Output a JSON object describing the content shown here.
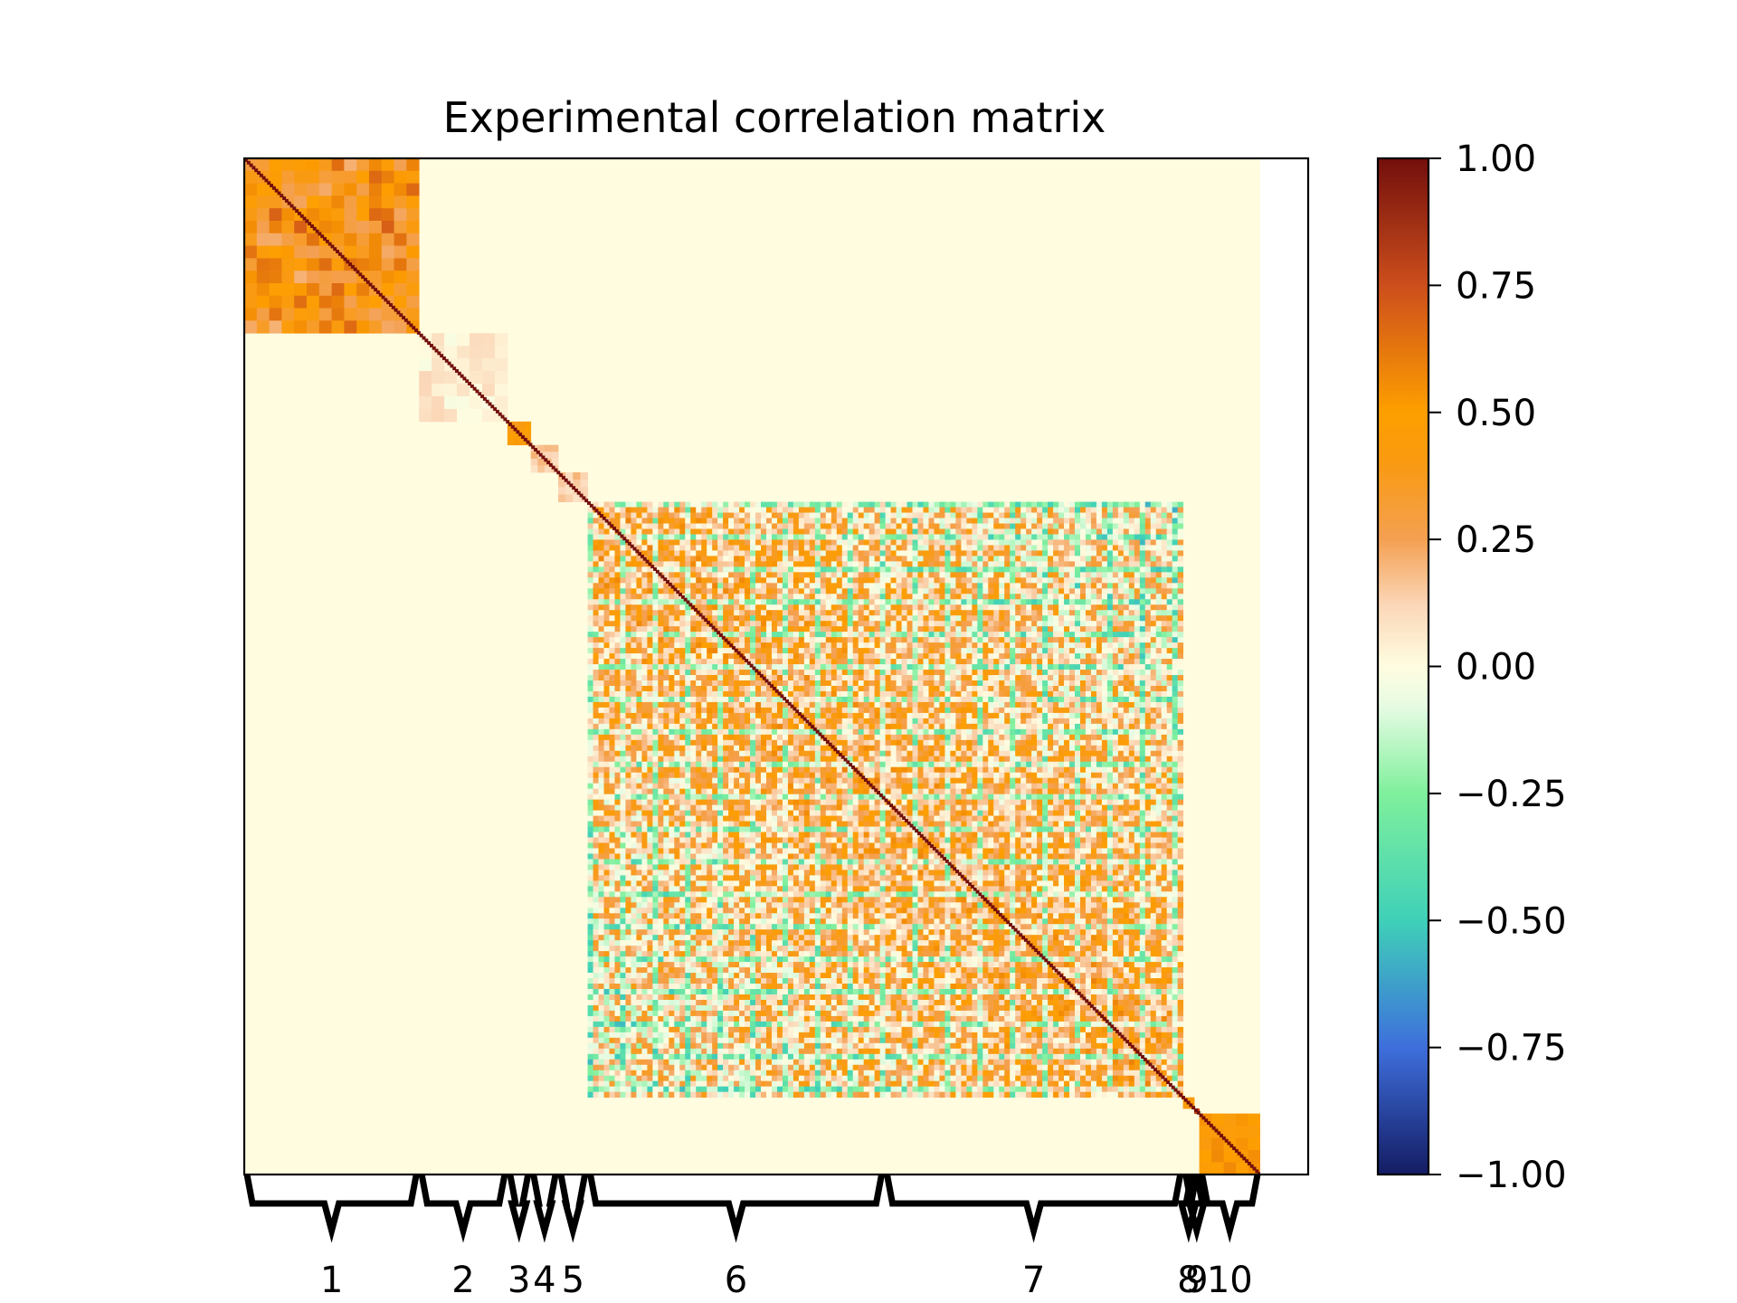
{
  "chart_data": {
    "type": "heatmap",
    "title": "Experimental correlation matrix",
    "colorbar": {
      "min": -1.0,
      "max": 1.0,
      "ticks": [
        "1.00",
        "0.75",
        "0.50",
        "0.25",
        "0.00",
        "−0.25",
        "−0.50",
        "−0.75",
        "−1.00"
      ],
      "tick_values": [
        1.0,
        0.75,
        0.5,
        0.25,
        0.0,
        -0.25,
        -0.5,
        -0.75,
        -1.0
      ],
      "colormap_stops": [
        {
          "value": -1.0,
          "color": "#141c63"
        },
        {
          "value": -0.75,
          "color": "#3e6fdc"
        },
        {
          "value": -0.5,
          "color": "#3fd0b8"
        },
        {
          "value": -0.25,
          "color": "#7ff09c"
        },
        {
          "value": -0.08,
          "color": "#e6fbe3"
        },
        {
          "value": 0.0,
          "color": "#fffce0"
        },
        {
          "value": 0.12,
          "color": "#fbd7b8"
        },
        {
          "value": 0.25,
          "color": "#f4a052"
        },
        {
          "value": 0.4,
          "color": "#f99a12"
        },
        {
          "value": 0.5,
          "color": "#fe9f00"
        },
        {
          "value": 0.75,
          "color": "#cc4e1c"
        },
        {
          "value": 1.0,
          "color": "#720f0c"
        }
      ]
    },
    "background_value": 0.0,
    "diagonal_value": 1.0,
    "groups": [
      {
        "label": "1",
        "start": 0.0,
        "end": 0.172,
        "avg_correlation": 0.45
      },
      {
        "label": "2",
        "start": 0.172,
        "end": 0.259,
        "avg_correlation": 0.05
      },
      {
        "label": "3",
        "start": 0.259,
        "end": 0.282,
        "avg_correlation": 0.45
      },
      {
        "label": "4",
        "start": 0.282,
        "end": 0.309,
        "avg_correlation": 0.15
      },
      {
        "label": "5",
        "start": 0.309,
        "end": 0.338,
        "avg_correlation": 0.15
      },
      {
        "label": "6",
        "start": 0.338,
        "end": 0.63,
        "avg_correlation": 0.3
      },
      {
        "label": "7",
        "start": 0.63,
        "end": 0.924,
        "avg_correlation": 0.25
      },
      {
        "label": "8",
        "start": 0.924,
        "end": 0.935,
        "avg_correlation": 0.45
      },
      {
        "label": "9",
        "start": 0.935,
        "end": 0.94,
        "avg_correlation": 0.8
      },
      {
        "label": "10",
        "start": 0.94,
        "end": 1.0,
        "avg_correlation": 0.5
      }
    ],
    "block_6_7_extent": {
      "start": 0.338,
      "end": 0.924
    },
    "xlabel": "",
    "ylabel": ""
  }
}
